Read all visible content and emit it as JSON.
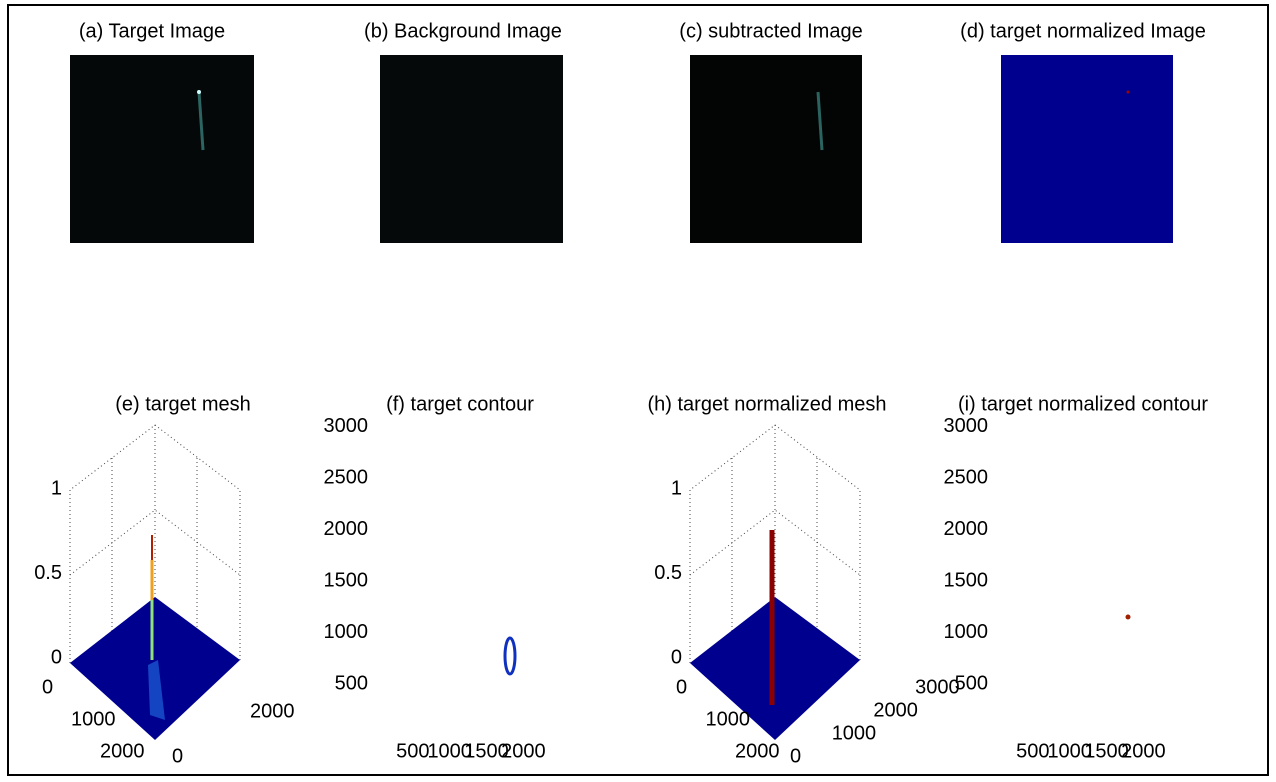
{
  "panels": [
    {
      "title": "(a) Target Image"
    },
    {
      "title": "(b) Background Image"
    },
    {
      "title": "(c) subtracted Image"
    },
    {
      "title": "(d) target normalized Image"
    },
    {
      "title": "(e) target mesh",
      "z_ticks": [
        0,
        0.5,
        1
      ],
      "left_ticks": [
        0,
        1000,
        2000
      ],
      "right_ticks": [
        0,
        2000
      ]
    },
    {
      "title": "(f) target contour",
      "y_ticks": [
        500,
        1000,
        1500,
        2000,
        2500,
        3000
      ],
      "x_ticks": [
        500,
        1000,
        1500,
        2000
      ]
    },
    {
      "title": "(h) target normalized mesh",
      "z_ticks": [
        0,
        0.5,
        1
      ],
      "left_ticks": [
        0,
        1000,
        2000
      ],
      "right_ticks": [
        0,
        1000,
        2000,
        3000
      ]
    },
    {
      "title": "(i) target normalized contour",
      "y_ticks": [
        500,
        1000,
        1500,
        2000,
        2500,
        3000
      ],
      "x_ticks": [
        500,
        1000,
        1500,
        2000
      ]
    }
  ]
}
